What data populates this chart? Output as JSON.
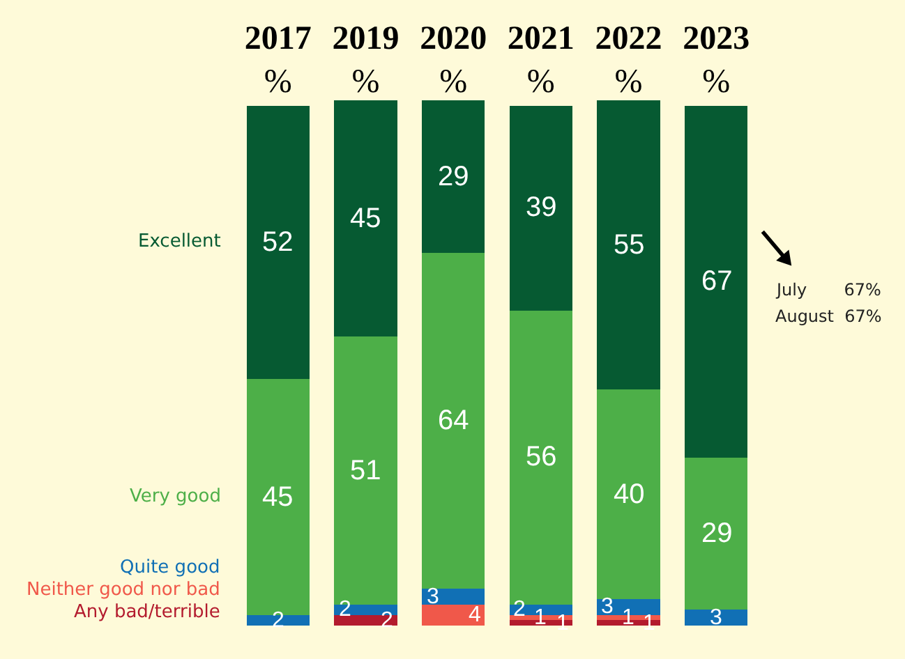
{
  "chart_data": {
    "type": "bar",
    "stacked": true,
    "data_labels": true,
    "legend": "left",
    "categories": [
      "2017\n%",
      "2019\n%",
      "2020\n%",
      "2021\n%",
      "2022\n%",
      "2023\n%"
    ],
    "series": [
      {
        "name": "Any bad/terrible",
        "color": "#b31b2e",
        "values": [
          null,
          2,
          null,
          1,
          1,
          null
        ]
      },
      {
        "name": "Neither good nor bad",
        "color": "#f0584a",
        "values": [
          null,
          null,
          4,
          1,
          1,
          null
        ]
      },
      {
        "name": "Quite good",
        "color": "#1170b5",
        "values": [
          2,
          2,
          3,
          2,
          3,
          3
        ]
      },
      {
        "name": "Very good",
        "color": "#4daf48",
        "values": [
          45,
          51,
          64,
          56,
          40,
          29
        ]
      },
      {
        "name": "Excellent",
        "color": "#065a32",
        "values": [
          52,
          45,
          29,
          39,
          55,
          67
        ]
      }
    ],
    "annotations": [
      "July       67%",
      "August  67%"
    ]
  }
}
